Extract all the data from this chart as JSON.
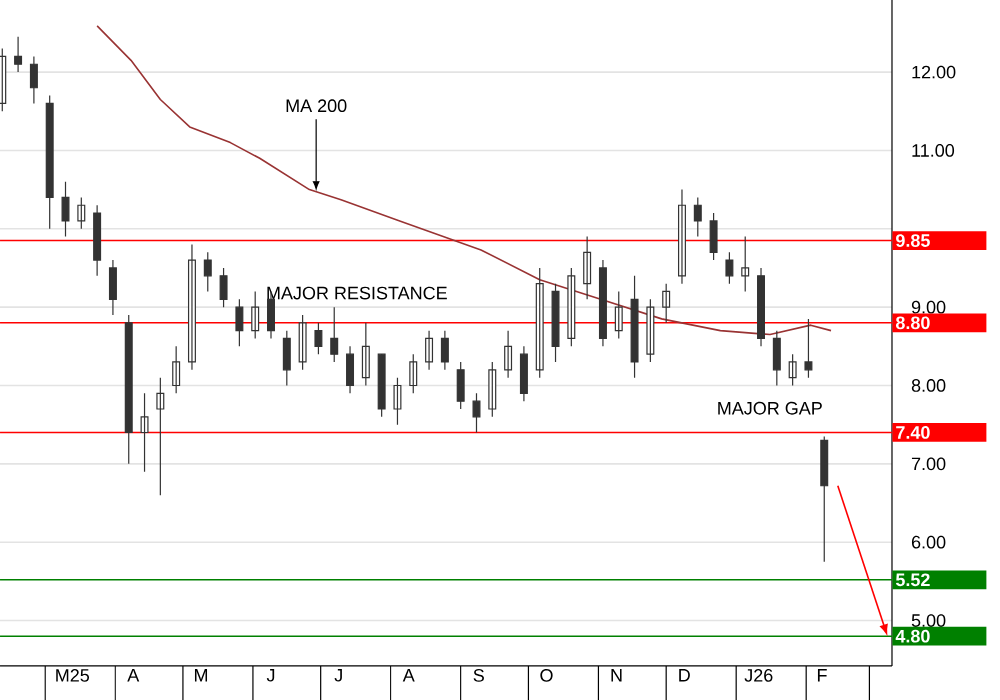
{
  "chart_data": {
    "type": "candlestick",
    "series": [
      {
        "color": "#333333",
        "x": [
          "2025-02-10",
          "2025-02-17",
          "2025-02-24",
          "2025-03-03",
          "2025-03-10",
          "2025-03-17",
          "2025-03-24",
          "2025-03-31",
          "2025-04-07",
          "2025-04-14",
          "2025-04-21",
          "2025-04-28",
          "2025-05-05",
          "2025-05-12",
          "2025-05-19",
          "2025-05-26",
          "2025-06-02",
          "2025-06-09",
          "2025-06-16",
          "2025-06-23",
          "2025-06-30",
          "2025-07-07",
          "2025-07-14",
          "2025-07-21",
          "2025-07-28",
          "2025-08-04",
          "2025-08-11",
          "2025-08-18",
          "2025-08-25",
          "2025-09-01",
          "2025-09-08",
          "2025-09-15",
          "2025-09-22",
          "2025-09-29",
          "2025-10-06",
          "2025-10-13",
          "2025-10-20",
          "2025-10-27",
          "2025-11-03",
          "2025-11-10",
          "2025-11-17",
          "2025-11-24",
          "2025-12-01",
          "2025-12-08",
          "2025-12-15",
          "2025-12-22",
          "2025-12-29",
          "2026-01-05",
          "2026-01-12",
          "2026-01-19",
          "2026-01-26",
          "2026-02-02",
          "2026-02-09"
        ],
        "ohlc": [
          [
            11.6,
            12.3,
            11.5,
            12.2
          ],
          [
            12.2,
            12.45,
            12.0,
            12.1
          ],
          [
            12.1,
            12.2,
            11.6,
            11.8
          ],
          [
            11.6,
            11.7,
            10.0,
            10.4
          ],
          [
            10.4,
            10.6,
            9.9,
            10.1
          ],
          [
            10.1,
            10.4,
            10.0,
            10.3
          ],
          [
            10.2,
            10.3,
            9.4,
            9.6
          ],
          [
            9.5,
            9.6,
            8.9,
            9.1
          ],
          [
            8.8,
            8.9,
            7.0,
            7.4
          ],
          [
            7.4,
            7.9,
            6.9,
            7.6
          ],
          [
            7.7,
            8.1,
            6.6,
            7.9
          ],
          [
            8.0,
            8.5,
            7.9,
            8.3
          ],
          [
            8.3,
            9.8,
            8.2,
            9.6
          ],
          [
            9.6,
            9.7,
            9.2,
            9.4
          ],
          [
            9.4,
            9.5,
            9.0,
            9.1
          ],
          [
            9.0,
            9.1,
            8.5,
            8.7
          ],
          [
            8.7,
            9.2,
            8.6,
            9.0
          ],
          [
            9.1,
            9.2,
            8.6,
            8.7
          ],
          [
            8.6,
            8.7,
            8.0,
            8.2
          ],
          [
            8.3,
            8.9,
            8.2,
            8.8
          ],
          [
            8.7,
            8.8,
            8.4,
            8.5
          ],
          [
            8.6,
            9.0,
            8.3,
            8.4
          ],
          [
            8.4,
            8.5,
            7.9,
            8.0
          ],
          [
            8.1,
            8.8,
            8.0,
            8.5
          ],
          [
            8.4,
            8.4,
            7.6,
            7.7
          ],
          [
            7.7,
            8.1,
            7.5,
            8.0
          ],
          [
            8.0,
            8.4,
            7.9,
            8.3
          ],
          [
            8.3,
            8.7,
            8.2,
            8.6
          ],
          [
            8.6,
            8.7,
            8.2,
            8.3
          ],
          [
            8.2,
            8.3,
            7.7,
            7.8
          ],
          [
            7.8,
            7.9,
            7.4,
            7.6
          ],
          [
            7.7,
            8.3,
            7.6,
            8.2
          ],
          [
            8.2,
            8.7,
            8.1,
            8.5
          ],
          [
            8.4,
            8.5,
            7.8,
            7.9
          ],
          [
            8.2,
            9.5,
            8.1,
            9.3
          ],
          [
            9.2,
            9.3,
            8.3,
            8.5
          ],
          [
            8.6,
            9.5,
            8.5,
            9.4
          ],
          [
            9.3,
            9.9,
            9.1,
            9.7
          ],
          [
            9.5,
            9.6,
            8.5,
            8.6
          ],
          [
            8.7,
            9.2,
            8.6,
            9.0
          ],
          [
            9.1,
            9.4,
            8.1,
            8.3
          ],
          [
            8.4,
            9.1,
            8.3,
            9.0
          ],
          [
            9.0,
            9.3,
            8.8,
            9.2
          ],
          [
            9.4,
            10.5,
            9.3,
            10.3
          ],
          [
            10.3,
            10.4,
            9.9,
            10.1
          ],
          [
            10.1,
            10.2,
            9.6,
            9.7
          ],
          [
            9.6,
            9.7,
            9.3,
            9.4
          ],
          [
            9.4,
            9.9,
            9.2,
            9.5
          ],
          [
            9.4,
            9.5,
            8.5,
            8.6
          ],
          [
            8.6,
            8.7,
            8.0,
            8.2
          ],
          [
            8.1,
            8.4,
            8.0,
            8.3
          ],
          [
            8.3,
            8.85,
            8.1,
            8.2
          ],
          [
            7.3,
            7.35,
            5.75,
            6.72
          ]
        ]
      },
      {
        "type": "line",
        "color": "#993333",
        "x": [
          "2025-03-24",
          "2025-04-08",
          "2025-04-21",
          "2025-05-04",
          "2025-05-22",
          "2025-06-04",
          "2025-06-26",
          "2025-07-10",
          "2025-08-05",
          "2025-09-10",
          "2025-10-06",
          "2025-11-02",
          "2025-11-29",
          "2025-12-25",
          "2026-01-16",
          "2026-02-03",
          "2026-02-12"
        ],
        "values": [
          12.59,
          12.15,
          11.65,
          11.3,
          11.1,
          10.9,
          10.5,
          10.37,
          10.1,
          9.73,
          9.35,
          9.1,
          8.85,
          8.7,
          8.65,
          8.77,
          8.7
        ]
      }
    ],
    "xlim": [
      "2025-02-09",
      "2026-03-11"
    ],
    "xticks": [
      {
        "value": "2025-03-13",
        "label": "M25"
      },
      {
        "value": "2025-04-09",
        "label": "A"
      },
      {
        "value": "2025-05-09",
        "label": "M"
      },
      {
        "value": "2025-06-09",
        "label": "J"
      },
      {
        "value": "2025-07-09",
        "label": "J"
      },
      {
        "value": "2025-08-09",
        "label": "A"
      },
      {
        "value": "2025-09-09",
        "label": "S"
      },
      {
        "value": "2025-10-09",
        "label": "O"
      },
      {
        "value": "2025-11-09",
        "label": "N"
      },
      {
        "value": "2025-12-09",
        "label": "D"
      },
      {
        "value": "2026-01-11",
        "label": "J26"
      },
      {
        "value": "2026-02-08",
        "label": "F"
      }
    ],
    "ylim": [
      4.42,
      12.92
    ],
    "yticks": [
      {
        "value": 5,
        "label": "5.00"
      },
      {
        "value": 6,
        "label": "6.00"
      },
      {
        "value": 7,
        "label": "7.00"
      },
      {
        "value": 8,
        "label": "8.00"
      },
      {
        "value": 9,
        "label": "9.00"
      },
      {
        "value": 10,
        "label": null
      },
      {
        "value": 11,
        "label": "11.00"
      },
      {
        "value": 12,
        "label": "12.00"
      }
    ],
    "grid": "y",
    "ref_lines": [
      {
        "axis": "y",
        "value": 9.85,
        "label": "9.85",
        "color": "#ff0000"
      },
      {
        "axis": "y",
        "value": 8.8,
        "label": "8.80",
        "color": "#ff0000"
      },
      {
        "axis": "y",
        "value": 7.4,
        "label": "7.40",
        "color": "#ff0000"
      },
      {
        "axis": "y",
        "value": 5.52,
        "label": "5.52",
        "color": "#008000"
      },
      {
        "axis": "y",
        "value": 4.8,
        "label": "4.80",
        "color": "#008000"
      }
    ],
    "annotations": [
      {
        "text": "MA 200",
        "x": "2025-06-29",
        "y": 10.48
      },
      "MAJOR RESISTANCE",
      "MAJOR GAP"
    ]
  }
}
